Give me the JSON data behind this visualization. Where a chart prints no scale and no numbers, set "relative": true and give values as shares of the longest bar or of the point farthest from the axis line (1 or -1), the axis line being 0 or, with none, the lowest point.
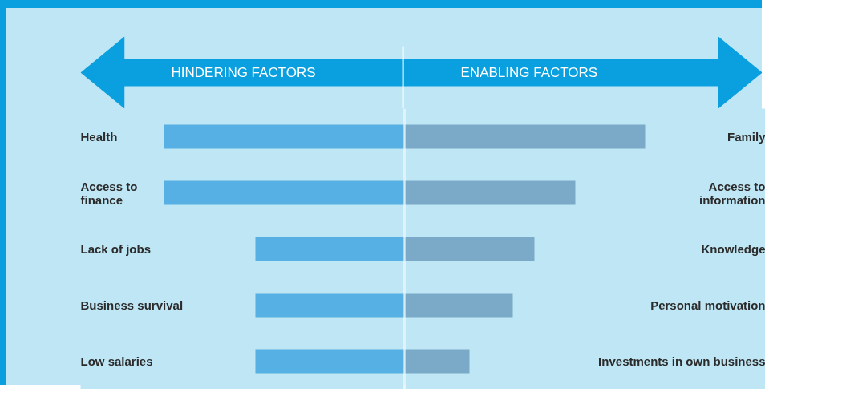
{
  "chart_data": [
    {
      "type": "bar",
      "orientation": "horizontal",
      "relative": true,
      "categories": [
        "Health",
        "Access to\nfinance",
        "Lack of jobs",
        "Business survival",
        "Low salaries"
      ],
      "series": [
        {
          "name": "HINDERING FACTORS",
          "color": "#56b0e3",
          "values": [
            -1,
            -1,
            -0.62,
            -0.62,
            -0.62
          ]
        }
      ]
    },
    {
      "type": "bar",
      "orientation": "horizontal",
      "relative": true,
      "categories": [
        "Family",
        "Access to\ninformation",
        "Knowledge",
        "Personal motivation",
        "Investments in own business"
      ],
      "series": [
        {
          "name": "ENABLING FACTORS",
          "color": "#7ba9c8",
          "values": [
            1,
            0.71,
            0.54,
            0.45,
            0.27
          ]
        }
      ]
    }
  ]
}
